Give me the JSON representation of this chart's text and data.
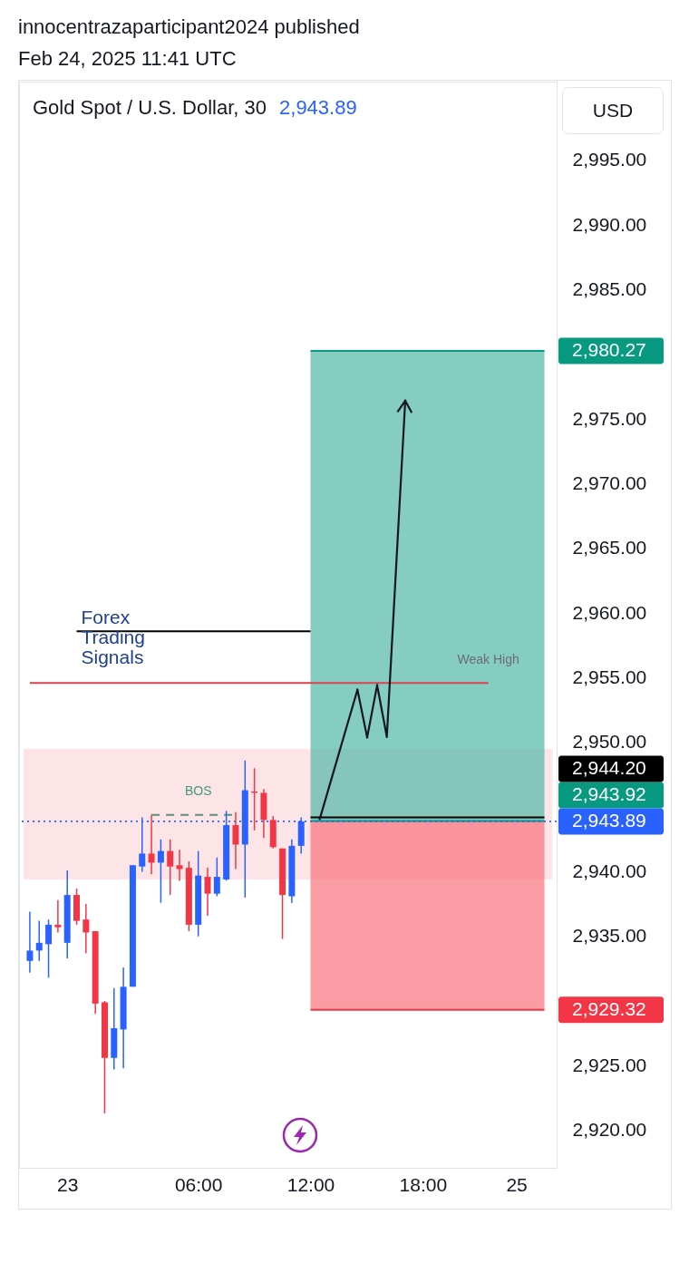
{
  "chart_data": {
    "type": "candlestick",
    "title": "Gold Spot / U.S. Dollar, 30",
    "subtitle": "2,943.89",
    "ylabel": "USD",
    "annotations": [
      "innocentrazaparticipant2024 published",
      "Feb 24, 2025 11:41 UTC",
      {
        "text": "Forex\nTrading\nSignals",
        "y": 2958.6
      },
      {
        "text": "BOS",
        "x": "06:00",
        "y": 2944.4
      },
      {
        "text": "Weak High",
        "y": 2954.6
      }
    ],
    "categories": [
      null,
      null,
      null,
      null,
      "23",
      null,
      null,
      null,
      null,
      null,
      null,
      null,
      null,
      null,
      null,
      null,
      null,
      null,
      "06:00",
      null,
      null,
      null,
      null,
      null,
      null,
      null,
      null,
      null,
      null,
      null,
      "12:00",
      null,
      null,
      null,
      null,
      null,
      null,
      null,
      null,
      null,
      null,
      null,
      "18:00",
      null,
      null,
      null,
      null,
      null,
      null,
      null,
      null,
      null,
      "25",
      null,
      null,
      null
    ],
    "ohlc": [
      [
        2933.1,
        2936.9,
        2932.2,
        2933.9
      ],
      [
        2933.9,
        2936.2,
        2933.1,
        2934.5
      ],
      [
        2934.4,
        2936.3,
        2931.8,
        2935.9
      ],
      [
        2935.9,
        2937.8,
        2935.3,
        2935.7
      ],
      [
        2934.5,
        2940.1,
        2933.3,
        2938.2
      ],
      [
        2938.2,
        2938.7,
        2935.9,
        2936.2
      ],
      [
        2936.3,
        2937.5,
        2933.7,
        2935.3
      ],
      [
        2935.4,
        2935.4,
        2929.0,
        2929.8
      ],
      [
        2929.9,
        2930.0,
        2921.3,
        2925.6
      ],
      [
        2925.6,
        2931.0,
        2924.7,
        2927.9
      ],
      [
        2927.8,
        2932.6,
        2924.8,
        2931.1
      ],
      [
        2931.1,
        2940.5,
        2931.1,
        2940.5
      ],
      [
        2940.4,
        2944.2,
        2940.0,
        2941.4
      ],
      [
        2941.4,
        2944.4,
        2939.8,
        2940.7
      ],
      [
        2940.7,
        2942.5,
        2937.6,
        2941.6
      ],
      [
        2941.6,
        2942.5,
        2938.2,
        2940.4
      ],
      [
        2940.5,
        2941.7,
        2939.3,
        2940.2
      ],
      [
        2940.3,
        2940.8,
        2935.4,
        2935.9
      ],
      [
        2935.9,
        2941.6,
        2935.0,
        2939.7
      ],
      [
        2939.6,
        2940.3,
        2936.6,
        2938.3
      ],
      [
        2938.3,
        2941.1,
        2938.1,
        2939.6
      ],
      [
        2939.4,
        2944.7,
        2939.3,
        2943.6
      ],
      [
        2943.6,
        2944.6,
        2940.2,
        2942.1
      ],
      [
        2942.1,
        2948.6,
        2938.0,
        2946.3
      ],
      [
        2946.2,
        2948.0,
        2943.2,
        2946.1
      ],
      [
        2946.1,
        2946.4,
        2942.6,
        2944.0
      ],
      [
        2944.0,
        2944.3,
        2941.8,
        2941.9
      ],
      [
        2941.8,
        2941.8,
        2934.8,
        2938.2
      ],
      [
        2938.1,
        2942.5,
        2937.6,
        2942.0
      ],
      [
        2942.0,
        2944.2,
        2941.4,
        2943.9
      ],
      null,
      null,
      null,
      null,
      null,
      null,
      null,
      null,
      null,
      null,
      null,
      null,
      null,
      null,
      null,
      null,
      null,
      null,
      null,
      null,
      null,
      null,
      null,
      null,
      null,
      null
    ],
    "colors": [
      "#2962ff",
      "#2962ff",
      "#2962ff",
      "#f23645",
      "#2962ff",
      "#f23645",
      "#f23645",
      "#f23645",
      "#f23645",
      "#2962ff",
      "#2962ff",
      "#2962ff",
      "#2962ff",
      "#f23645",
      "#2962ff",
      "#f23645",
      "#f23645",
      "#f23645",
      "#2962ff",
      "#f23645",
      "#2962ff",
      "#2962ff",
      "#f23645",
      "#2962ff",
      "#f23645",
      "#f23645",
      "#f23645",
      "#f23645",
      "#2962ff",
      "#2962ff",
      null,
      null,
      null,
      null,
      null,
      null,
      null,
      null,
      null,
      null,
      null,
      null,
      null,
      null,
      null,
      null,
      null,
      null,
      null,
      null,
      null,
      null,
      null,
      null,
      null,
      null
    ],
    "series": [
      {
        "type": "line",
        "color": "#000000",
        "values": [
          null,
          null,
          null,
          null,
          null,
          2958.6,
          2958.6,
          2958.6,
          2958.6,
          2958.6,
          2958.6,
          2958.6,
          2958.6,
          2958.6,
          2958.6,
          2958.6,
          2958.6,
          2958.6,
          2958.6,
          2958.6,
          2958.6,
          2958.6,
          2958.6,
          2958.6,
          2958.6,
          2958.6,
          2958.6,
          2958.6,
          2958.6,
          2958.6,
          2958.6,
          null,
          null,
          null,
          null,
          null,
          null,
          null,
          null,
          null,
          null,
          null,
          null,
          null,
          null,
          null,
          null,
          null,
          null,
          null,
          null,
          null,
          null,
          null,
          null,
          null
        ]
      },
      {
        "type": "line",
        "color": "#d9434e",
        "values": [
          2954.6,
          2954.6,
          2954.6,
          2954.6,
          2954.6,
          2954.6,
          2954.6,
          2954.6,
          2954.6,
          2954.6,
          2954.6,
          2954.6,
          2954.6,
          2954.6,
          2954.6,
          2954.6,
          2954.6,
          2954.6,
          2954.6,
          2954.6,
          2954.6,
          2954.6,
          2954.6,
          2954.6,
          2954.6,
          2954.6,
          2954.6,
          2954.6,
          2954.6,
          2954.6,
          2954.6,
          2954.6,
          2954.6,
          2954.6,
          2954.6,
          2954.6,
          2954.6,
          2954.6,
          2954.6,
          2954.6,
          2954.6,
          2954.6,
          2954.6,
          2954.6,
          2954.6,
          2954.6,
          2954.6,
          2954.6,
          2954.6,
          2954.6,
          null,
          null,
          null,
          null,
          null,
          null
        ]
      },
      {
        "type": "line",
        "color": "#5b8f80",
        "line_style": "dashed",
        "values": [
          null,
          null,
          null,
          null,
          null,
          null,
          null,
          null,
          null,
          null,
          null,
          null,
          null,
          2944.4,
          2944.4,
          2944.4,
          2944.4,
          2944.4,
          2944.4,
          2944.4,
          2944.4,
          2944.4,
          2944.4,
          null,
          null,
          null,
          null,
          null,
          null,
          null,
          null,
          null,
          null,
          null,
          null,
          null,
          null,
          null,
          null,
          null,
          null,
          null,
          null,
          null,
          null,
          null,
          null,
          null,
          null,
          null,
          null,
          null,
          null,
          null,
          null,
          null
        ]
      },
      {
        "type": "line",
        "color": "#089981",
        "values": [
          null,
          null,
          null,
          null,
          null,
          null,
          null,
          null,
          null,
          null,
          null,
          null,
          null,
          null,
          null,
          null,
          null,
          null,
          null,
          null,
          null,
          null,
          null,
          null,
          null,
          null,
          null,
          null,
          null,
          null,
          2980.27,
          2980.27,
          2980.27,
          2980.27,
          2980.27,
          2980.27,
          2980.27,
          2980.27,
          2980.27,
          2980.27,
          2980.27,
          2980.27,
          2980.27,
          2980.27,
          2980.27,
          2980.27,
          2980.27,
          2980.27,
          2980.27,
          2980.27,
          2980.27,
          2980.27,
          2980.27,
          2980.27,
          2980.27,
          2980.27
        ],
        "lower": [
          null,
          null,
          null,
          null,
          null,
          null,
          null,
          null,
          null,
          null,
          null,
          null,
          null,
          null,
          null,
          null,
          null,
          null,
          null,
          null,
          null,
          null,
          null,
          null,
          null,
          null,
          null,
          null,
          null,
          null,
          2943.92,
          2943.92,
          2943.92,
          2943.92,
          2943.92,
          2943.92,
          2943.92,
          2943.92,
          2943.92,
          2943.92,
          2943.92,
          2943.92,
          2943.92,
          2943.92,
          2943.92,
          2943.92,
          2943.92,
          2943.92,
          2943.92,
          2943.92,
          2943.92,
          2943.92,
          2943.92,
          2943.92,
          2943.92,
          2943.92
        ],
        "upper": [
          null,
          null,
          null,
          null,
          null,
          null,
          null,
          null,
          null,
          null,
          null,
          null,
          null,
          null,
          null,
          null,
          null,
          null,
          null,
          null,
          null,
          null,
          null,
          null,
          null,
          null,
          null,
          null,
          null,
          null,
          2980.27,
          2980.27,
          2980.27,
          2980.27,
          2980.27,
          2980.27,
          2980.27,
          2980.27,
          2980.27,
          2980.27,
          2980.27,
          2980.27,
          2980.27,
          2980.27,
          2980.27,
          2980.27,
          2980.27,
          2980.27,
          2980.27,
          2980.27,
          2980.27,
          2980.27,
          2980.27,
          2980.27,
          2980.27,
          2980.27
        ],
        "value_labels": [
          null,
          null,
          null,
          null,
          null,
          null,
          null,
          null,
          null,
          null,
          null,
          null,
          null,
          null,
          null,
          null,
          null,
          null,
          null,
          null,
          null,
          null,
          null,
          null,
          null,
          null,
          null,
          null,
          null,
          null,
          null,
          null,
          null,
          null,
          null,
          null,
          null,
          null,
          null,
          null,
          null,
          null,
          null,
          null,
          null,
          null,
          null,
          null,
          null,
          null,
          null,
          null,
          null,
          null,
          null,
          "2,980.27"
        ]
      },
      {
        "type": "line",
        "color": "#f23645",
        "values": [
          null,
          null,
          null,
          null,
          null,
          null,
          null,
          null,
          null,
          null,
          null,
          null,
          null,
          null,
          null,
          null,
          null,
          null,
          null,
          null,
          null,
          null,
          null,
          null,
          null,
          null,
          null,
          null,
          null,
          null,
          2929.32,
          2929.32,
          2929.32,
          2929.32,
          2929.32,
          2929.32,
          2929.32,
          2929.32,
          2929.32,
          2929.32,
          2929.32,
          2929.32,
          2929.32,
          2929.32,
          2929.32,
          2929.32,
          2929.32,
          2929.32,
          2929.32,
          2929.32,
          2929.32,
          2929.32,
          2929.32,
          2929.32,
          2929.32,
          2929.32
        ],
        "lower": [
          null,
          null,
          null,
          null,
          null,
          null,
          null,
          null,
          null,
          null,
          null,
          null,
          null,
          null,
          null,
          null,
          null,
          null,
          null,
          null,
          null,
          null,
          null,
          null,
          null,
          null,
          null,
          null,
          null,
          null,
          2929.32,
          2929.32,
          2929.32,
          2929.32,
          2929.32,
          2929.32,
          2929.32,
          2929.32,
          2929.32,
          2929.32,
          2929.32,
          2929.32,
          2929.32,
          2929.32,
          2929.32,
          2929.32,
          2929.32,
          2929.32,
          2929.32,
          2929.32,
          2929.32,
          2929.32,
          2929.32,
          2929.32,
          2929.32,
          2929.32
        ],
        "upper": [
          null,
          null,
          null,
          null,
          null,
          null,
          null,
          null,
          null,
          null,
          null,
          null,
          null,
          null,
          null,
          null,
          null,
          null,
          null,
          null,
          null,
          null,
          null,
          null,
          null,
          null,
          null,
          null,
          null,
          null,
          2943.92,
          2943.92,
          2943.92,
          2943.92,
          2943.92,
          2943.92,
          2943.92,
          2943.92,
          2943.92,
          2943.92,
          2943.92,
          2943.92,
          2943.92,
          2943.92,
          2943.92,
          2943.92,
          2943.92,
          2943.92,
          2943.92,
          2943.92,
          2943.92,
          2943.92,
          2943.92,
          2943.92,
          2943.92,
          2943.92
        ],
        "value_labels": [
          null,
          null,
          null,
          null,
          null,
          null,
          null,
          null,
          null,
          null,
          null,
          null,
          null,
          null,
          null,
          null,
          null,
          null,
          null,
          null,
          null,
          null,
          null,
          null,
          null,
          null,
          null,
          null,
          null,
          null,
          null,
          null,
          null,
          null,
          null,
          null,
          null,
          null,
          null,
          null,
          null,
          null,
          null,
          null,
          null,
          null,
          null,
          null,
          null,
          null,
          null,
          null,
          null,
          null,
          null,
          "2,929.32"
        ]
      },
      {
        "type": "line",
        "color": "#089981",
        "values": [
          null,
          null,
          null,
          null,
          null,
          null,
          null,
          null,
          null,
          null,
          null,
          null,
          null,
          null,
          null,
          null,
          null,
          null,
          null,
          null,
          null,
          null,
          null,
          null,
          null,
          null,
          null,
          null,
          null,
          null,
          2943.92,
          2943.92,
          2943.92,
          2943.92,
          2943.92,
          2943.92,
          2943.92,
          2943.92,
          2943.92,
          2943.92,
          2943.92,
          2943.92,
          2943.92,
          2943.92,
          2943.92,
          2943.92,
          2943.92,
          2943.92,
          2943.92,
          2943.92,
          2943.92,
          2943.92,
          2943.92,
          2943.92,
          2943.92,
          2943.92
        ],
        "value_labels": [
          null,
          null,
          null,
          null,
          null,
          null,
          null,
          null,
          null,
          null,
          null,
          null,
          null,
          null,
          null,
          null,
          null,
          null,
          null,
          null,
          null,
          null,
          null,
          null,
          null,
          null,
          null,
          null,
          null,
          null,
          null,
          null,
          null,
          null,
          null,
          null,
          null,
          null,
          null,
          null,
          null,
          null,
          null,
          null,
          null,
          null,
          null,
          null,
          null,
          null,
          null,
          null,
          null,
          null,
          null,
          "2,943.92"
        ]
      },
      {
        "type": "line",
        "color": "#000000",
        "values": [
          null,
          null,
          null,
          null,
          null,
          null,
          null,
          null,
          null,
          null,
          null,
          null,
          null,
          null,
          null,
          null,
          null,
          null,
          null,
          null,
          null,
          null,
          null,
          null,
          null,
          null,
          null,
          null,
          null,
          null,
          2944.2,
          2944.2,
          2944.2,
          2944.2,
          2944.2,
          2944.2,
          2944.2,
          2944.2,
          2944.2,
          2944.2,
          2944.2,
          2944.2,
          2944.2,
          2944.2,
          2944.2,
          2944.2,
          2944.2,
          2944.2,
          2944.2,
          2944.2,
          2944.2,
          2944.2,
          2944.2,
          2944.2,
          2944.2,
          2944.2
        ],
        "value_labels": [
          null,
          null,
          null,
          null,
          null,
          null,
          null,
          null,
          null,
          null,
          null,
          null,
          null,
          null,
          null,
          null,
          null,
          null,
          null,
          null,
          null,
          null,
          null,
          null,
          null,
          null,
          null,
          null,
          null,
          null,
          null,
          null,
          null,
          null,
          null,
          null,
          null,
          null,
          null,
          null,
          null,
          null,
          null,
          null,
          null,
          null,
          null,
          null,
          null,
          null,
          null,
          null,
          null,
          null,
          null,
          "2,944.20"
        ]
      }
    ],
    "ref_lines": [
      {
        "axis": "y",
        "value": 2943.89,
        "label": "2,943.89",
        "color": "#2962ff",
        "line_style": "dotted"
      }
    ],
    "bands": [
      {
        "axis": "y",
        "from": 2939.4,
        "to": 2949.5,
        "color": "#fde5e7"
      }
    ],
    "ylim": [
      2917.1,
      3001.1
    ],
    "yticks": [
      {
        "value": 2920,
        "label": "2,920.00"
      },
      {
        "value": 2925,
        "label": "2,925.00"
      },
      {
        "value": 2935,
        "label": "2,935.00"
      },
      {
        "value": 2940,
        "label": "2,940.00"
      },
      {
        "value": 2950,
        "label": "2,950.00"
      },
      {
        "value": 2955,
        "label": "2,955.00"
      },
      {
        "value": 2960,
        "label": "2,960.00"
      },
      {
        "value": 2965,
        "label": "2,965.00"
      },
      {
        "value": 2970,
        "label": "2,970.00"
      },
      {
        "value": 2975,
        "label": "2,975.00"
      },
      {
        "value": 2985,
        "label": "2,985.00"
      },
      {
        "value": 2990,
        "label": "2,990.00"
      },
      {
        "value": 2995,
        "label": "2,995.00"
      }
    ]
  }
}
